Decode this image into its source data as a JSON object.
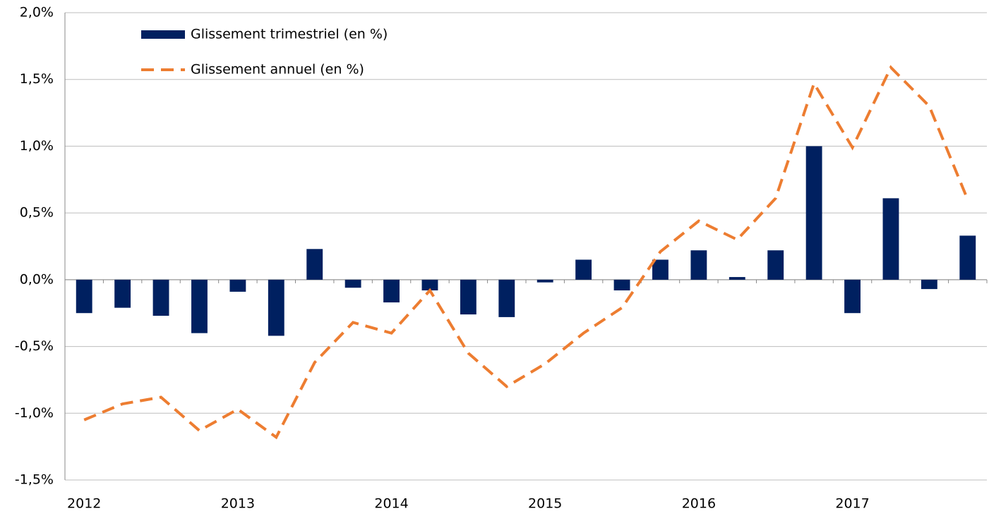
{
  "chart_data": {
    "type": "bar_line",
    "categories": [
      "2012",
      null,
      null,
      null,
      "2013",
      null,
      null,
      null,
      "2014",
      null,
      null,
      null,
      "2015",
      null,
      null,
      null,
      "2016",
      null,
      null,
      null,
      "2017",
      null,
      null,
      null
    ],
    "series": [
      {
        "name": "Glissement trimestriel (en %)",
        "type": "bar",
        "color": "#002060",
        "values": [
          -0.25,
          -0.21,
          -0.27,
          -0.4,
          -0.09,
          -0.42,
          0.23,
          -0.06,
          -0.17,
          -0.08,
          -0.26,
          -0.28,
          -0.02,
          0.15,
          -0.08,
          0.15,
          0.22,
          0.02,
          0.22,
          1.0,
          -0.25,
          0.61,
          -0.07,
          0.33
        ]
      },
      {
        "name": "Glissement annuel (en %)",
        "type": "line",
        "dashed": true,
        "color": "#ED7D31",
        "values": [
          -1.05,
          -0.93,
          -0.88,
          -1.13,
          -0.97,
          -1.18,
          -0.62,
          -0.32,
          -0.4,
          -0.08,
          -0.55,
          -0.8,
          -0.63,
          -0.4,
          -0.21,
          0.21,
          0.44,
          0.3,
          0.61,
          1.47,
          0.99,
          1.59,
          1.3,
          0.6
        ]
      }
    ],
    "ylim": [
      -1.5,
      2.0
    ],
    "yticks": [
      {
        "value": -1.5,
        "label": "-1,5%"
      },
      {
        "value": -1.0,
        "label": "-1,0%"
      },
      {
        "value": -0.5,
        "label": "-0,5%"
      },
      {
        "value": 0,
        "label": "0,0%"
      },
      {
        "value": 0.5,
        "label": "0,5%"
      },
      {
        "value": 1.0,
        "label": "1,0%"
      },
      {
        "value": 1.5,
        "label": "1,5%"
      },
      {
        "value": 2.0,
        "label": "2,0%"
      }
    ],
    "grid": true,
    "legend": "upper left"
  }
}
